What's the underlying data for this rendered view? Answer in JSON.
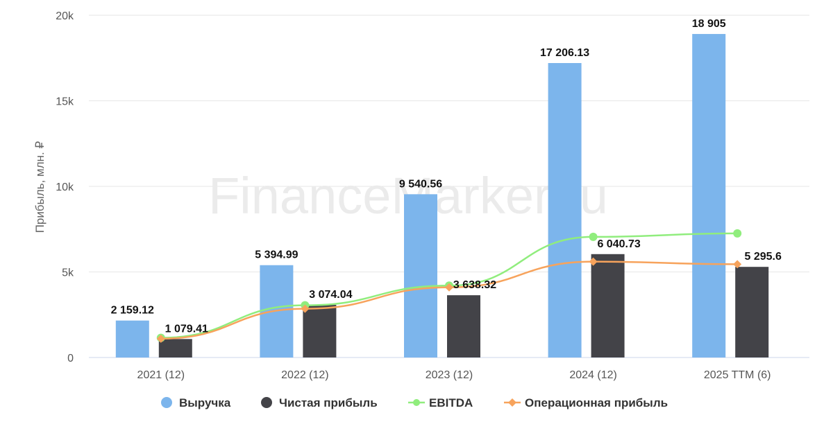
{
  "watermark": "FinanceMarker.ru",
  "colors": {
    "revenue": "#7cb5ec",
    "net_profit": "#434348",
    "ebitda": "#90ed7d",
    "operating_profit": "#f7a35c",
    "grid": "#e6e6e6"
  },
  "chart_data": {
    "type": "bar",
    "categories": [
      "2021 (12)",
      "2022 (12)",
      "2023 (12)",
      "2024 (12)",
      "2025 TTM (6)"
    ],
    "ylabel": "Прибыль, млн. ₽",
    "ylim": [
      0,
      20000
    ],
    "yticks": [
      {
        "value": 0,
        "label": "0"
      },
      {
        "value": 5000,
        "label": "5k"
      },
      {
        "value": 10000,
        "label": "10k"
      },
      {
        "value": 15000,
        "label": "15k"
      },
      {
        "value": 20000,
        "label": "20k"
      }
    ],
    "grid": true,
    "legend_position": "bottom",
    "series": [
      {
        "name": "Выручка",
        "kind": "bar",
        "color_key": "revenue",
        "values": [
          2159.12,
          5394.99,
          9540.56,
          17206.13,
          18905
        ],
        "labels": [
          "2 159.12",
          "5 394.99",
          "9 540.56",
          "17 206.13",
          "18 905"
        ]
      },
      {
        "name": "Чистая прибыль",
        "kind": "bar",
        "color_key": "net_profit",
        "values": [
          1079.41,
          3074.04,
          3638.32,
          6040.73,
          5295.6
        ],
        "labels": [
          "1 079.41",
          "3 074.04",
          "3 638.32",
          "6 040.73",
          "5 295.6"
        ]
      },
      {
        "name": "EBITDA",
        "kind": "line",
        "color_key": "ebitda",
        "values": [
          1150,
          3050,
          4200,
          7050,
          7250
        ]
      },
      {
        "name": "Операционная прибыль",
        "kind": "line",
        "color_key": "operating_profit",
        "values": [
          1100,
          2850,
          4100,
          5600,
          5450
        ]
      }
    ]
  }
}
